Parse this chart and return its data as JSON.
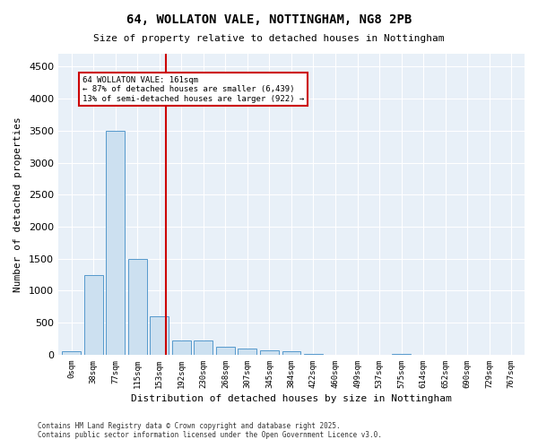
{
  "title1": "64, WOLLATON VALE, NOTTINGHAM, NG8 2PB",
  "title2": "Size of property relative to detached houses in Nottingham",
  "xlabel": "Distribution of detached houses by size in Nottingham",
  "ylabel": "Number of detached properties",
  "bar_color": "#cce0f0",
  "bar_edge_color": "#5599cc",
  "background_color": "#e8f0f8",
  "annotation_text": "64 WOLLATON VALE: 161sqm\n← 87% of detached houses are smaller (6,439)\n13% of semi-detached houses are larger (922) →",
  "vline_x": 4.3,
  "vline_color": "#cc0000",
  "annotation_box_color": "#cc0000",
  "footer_text": "Contains HM Land Registry data © Crown copyright and database right 2025.\nContains public sector information licensed under the Open Government Licence v3.0.",
  "categories": [
    "0sqm",
    "38sqm",
    "77sqm",
    "115sqm",
    "153sqm",
    "192sqm",
    "230sqm",
    "268sqm",
    "307sqm",
    "345sqm",
    "384sqm",
    "422sqm",
    "460sqm",
    "499sqm",
    "537sqm",
    "575sqm",
    "614sqm",
    "652sqm",
    "690sqm",
    "729sqm",
    "767sqm"
  ],
  "values": [
    50,
    1250,
    3500,
    1500,
    600,
    225,
    220,
    125,
    95,
    65,
    50,
    20,
    5,
    0,
    0,
    20,
    0,
    0,
    0,
    0,
    0
  ],
  "ylim": [
    0,
    4700
  ],
  "yticks": [
    0,
    500,
    1000,
    1500,
    2000,
    2500,
    3000,
    3500,
    4000,
    4500
  ]
}
